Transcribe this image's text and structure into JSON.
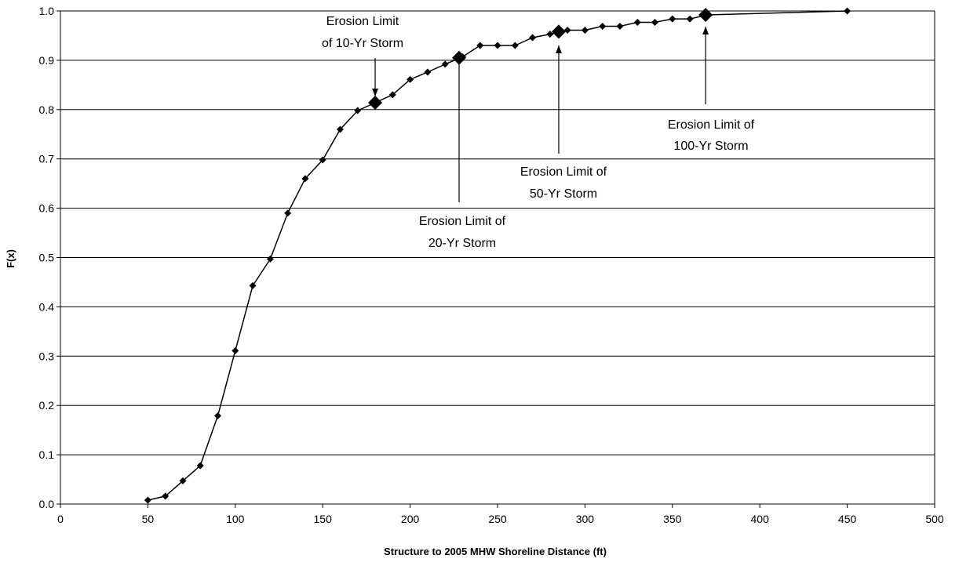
{
  "chart_data": {
    "type": "line",
    "title": "",
    "xlabel": "Structure to 2005 MHW Shoreline Distance (ft)",
    "ylabel": "F(x)",
    "xlim": [
      0,
      500
    ],
    "ylim": [
      0.0,
      1.0
    ],
    "x_ticks": [
      0,
      50,
      100,
      150,
      200,
      250,
      300,
      350,
      400,
      450,
      500
    ],
    "y_ticks": [
      0.0,
      0.1,
      0.2,
      0.3,
      0.4,
      0.5,
      0.6,
      0.7,
      0.8,
      0.9,
      1.0
    ],
    "y_tick_format": 1,
    "grid": "horizontal",
    "legend": "none",
    "line_color": "#000000",
    "series": [
      {
        "x": [
          50,
          60,
          70,
          80,
          90,
          100,
          110,
          120,
          130,
          140,
          150,
          160,
          170,
          180,
          190,
          200,
          210,
          220,
          230,
          240,
          250,
          260,
          270,
          280,
          290,
          300,
          310,
          320,
          330,
          340,
          350,
          360,
          370,
          450
        ],
        "y": [
          0.008,
          0.016,
          0.047,
          0.078,
          0.179,
          0.311,
          0.443,
          0.497,
          0.59,
          0.66,
          0.698,
          0.76,
          0.798,
          0.814,
          0.83,
          0.861,
          0.876,
          0.892,
          0.907,
          0.93,
          0.93,
          0.93,
          0.946,
          0.953,
          0.961,
          0.961,
          0.969,
          0.969,
          0.977,
          0.977,
          0.984,
          0.984,
          0.992,
          1.0
        ]
      }
    ],
    "highlight_points": [
      {
        "x": 180,
        "y": 0.814
      },
      {
        "x": 228,
        "y": 0.905
      },
      {
        "x": 285,
        "y": 0.958
      },
      {
        "x": 369,
        "y": 0.992
      }
    ],
    "annotations": [
      {
        "lines": [
          "Erosion Limit",
          "of 10-Yr Storm"
        ],
        "target": {
          "x": 180,
          "y": 0.814
        },
        "anchor": "above"
      },
      {
        "lines": [
          "Erosion Limit of",
          "20-Yr Storm"
        ],
        "target": {
          "x": 228,
          "y": 0.905
        },
        "anchor": "below"
      },
      {
        "lines": [
          "Erosion Limit of",
          "50-Yr Storm"
        ],
        "target": {
          "x": 285,
          "y": 0.958
        },
        "anchor": "below"
      },
      {
        "lines": [
          "Erosion Limit of",
          "100-Yr Storm"
        ],
        "target": {
          "x": 369,
          "y": 0.992
        },
        "anchor": "below"
      }
    ]
  }
}
